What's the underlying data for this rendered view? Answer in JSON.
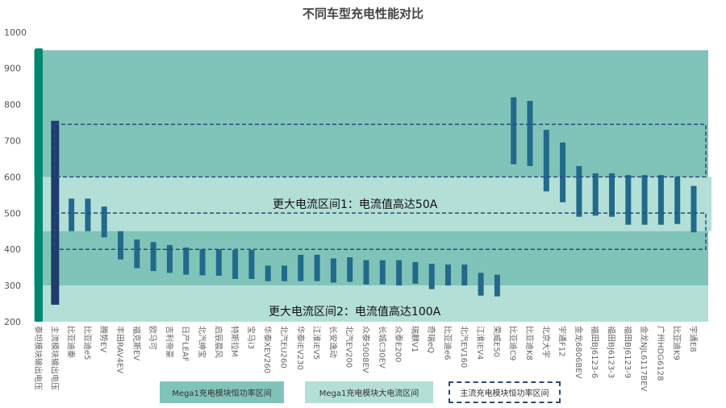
{
  "chart_data": {
    "type": "bar",
    "title": "不同车型充电性能对比",
    "ylim": [
      200,
      1000
    ],
    "yticks": [
      200,
      300,
      400,
      500,
      600,
      700,
      800,
      900,
      1000
    ],
    "grid": false,
    "legend_position": "bottom",
    "colors": {
      "constant_power_band": "#80c4b9",
      "high_current_band": "#b3dfd7",
      "bar": "#226a8a",
      "titan_bar": "#00876f",
      "mainstream_bar": "#1e3d6b",
      "dashed_box": "#2a4a80"
    },
    "bands": [
      {
        "name": "Mega1充电模块恒功率区间",
        "range": [
          300,
          950
        ]
      },
      {
        "name": "Mega1充电模块大电流区间",
        "range": [
          450,
          600
        ]
      },
      {
        "name": "Mega1充电模块大电流区间",
        "range": [
          200,
          300
        ]
      }
    ],
    "dashed_boxes": [
      {
        "name": "主流充电模块恒功率区间",
        "range": [
          600,
          745
        ]
      },
      {
        "name": "主流充电模块恒功率区间",
        "range": [
          400,
          500
        ]
      }
    ],
    "annotations": [
      "更大电流区间1：电流值高达50A",
      "更大电流区间2：电流值高达100A"
    ],
    "categories": [
      "泰坦模块输出电压",
      "主流模块输出电压",
      "比亚迪秦",
      "比亚迪e5",
      "腾势EV",
      "丰田RAV4EV",
      "福克斯EV",
      "欧马可",
      "吉利帝豪",
      "日产LEAF",
      "北汽绅宝",
      "启辰晨风",
      "特斯拉M",
      "宝马i3",
      "华泰XEV260",
      "北汽EU260",
      "华泰iEV230",
      "江淮iEV5",
      "长安逸动",
      "北汽EV200",
      "众泰5008EV",
      "长城C30EV",
      "众泰E200",
      "瑞麒V1",
      "奇瑞eQ",
      "比亚迪e6",
      "北汽EV160",
      "江淮iEV4",
      "荣威E50",
      "比亚迪C9",
      "比亚迪K8",
      "北京大宇",
      "宇通F12",
      "金龙6806BEV",
      "福田BJ6123-6",
      "福田BJ6123-3",
      "福田BJ6123-9",
      "金龙NJL6117BEV",
      "广州HDG6128",
      "比亚迪K9",
      "宇通E8"
    ],
    "ranges": [
      [
        200,
        955
      ],
      [
        247,
        755
      ],
      [
        450,
        540
      ],
      [
        450,
        540
      ],
      [
        433,
        518
      ],
      [
        372,
        450
      ],
      [
        348,
        427
      ],
      [
        340,
        420
      ],
      [
        335,
        412
      ],
      [
        330,
        405
      ],
      [
        328,
        400
      ],
      [
        327,
        400
      ],
      [
        318,
        398
      ],
      [
        318,
        398
      ],
      [
        312,
        355
      ],
      [
        312,
        355
      ],
      [
        312,
        385
      ],
      [
        312,
        385
      ],
      [
        308,
        375
      ],
      [
        310,
        378
      ],
      [
        303,
        370
      ],
      [
        303,
        370
      ],
      [
        300,
        370
      ],
      [
        305,
        365
      ],
      [
        290,
        360
      ],
      [
        300,
        358
      ],
      [
        300,
        358
      ],
      [
        272,
        335
      ],
      [
        270,
        330
      ],
      [
        635,
        820
      ],
      [
        630,
        810
      ],
      [
        560,
        730
      ],
      [
        530,
        695
      ],
      [
        490,
        630
      ],
      [
        493,
        610
      ],
      [
        490,
        610
      ],
      [
        468,
        605
      ],
      [
        468,
        605
      ],
      [
        468,
        605
      ],
      [
        470,
        600
      ],
      [
        447,
        575
      ]
    ]
  },
  "legend": [
    "Mega1充电模块恒功率区间",
    "Mega1充电模块大电流区间",
    "主流充电模块恒功率区间"
  ]
}
